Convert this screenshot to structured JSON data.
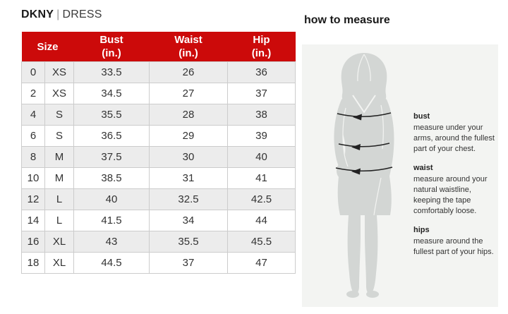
{
  "header": {
    "brand": "DKNY",
    "separator": "|",
    "category": "DRESS"
  },
  "size_chart": {
    "columns": {
      "size": {
        "label": "Size"
      },
      "bust": {
        "name": "Bust",
        "unit": "(in.)"
      },
      "waist": {
        "name": "Waist",
        "unit": "(in.)"
      },
      "hip": {
        "name": "Hip",
        "unit": "(in.)"
      }
    },
    "rows": [
      {
        "size_num": "0",
        "size_letter": "XS",
        "bust": "33.5",
        "waist": "26",
        "hip": "36"
      },
      {
        "size_num": "2",
        "size_letter": "XS",
        "bust": "34.5",
        "waist": "27",
        "hip": "37"
      },
      {
        "size_num": "4",
        "size_letter": "S",
        "bust": "35.5",
        "waist": "28",
        "hip": "38"
      },
      {
        "size_num": "6",
        "size_letter": "S",
        "bust": "36.5",
        "waist": "29",
        "hip": "39"
      },
      {
        "size_num": "8",
        "size_letter": "M",
        "bust": "37.5",
        "waist": "30",
        "hip": "40"
      },
      {
        "size_num": "10",
        "size_letter": "M",
        "bust": "38.5",
        "waist": "31",
        "hip": "41"
      },
      {
        "size_num": "12",
        "size_letter": "L",
        "bust": "40",
        "waist": "32.5",
        "hip": "42.5"
      },
      {
        "size_num": "14",
        "size_letter": "L",
        "bust": "41.5",
        "waist": "34",
        "hip": "44"
      },
      {
        "size_num": "16",
        "size_letter": "XL",
        "bust": "43",
        "waist": "35.5",
        "hip": "45.5"
      },
      {
        "size_num": "18",
        "size_letter": "XL",
        "bust": "44.5",
        "waist": "37",
        "hip": "47"
      }
    ]
  },
  "how_to_measure": {
    "title": "how to measure",
    "figure_icon": "woman-silhouette-with-measurement-arrows",
    "sections": [
      {
        "heading": "bust",
        "text": "measure under your arms, around the fullest part of your chest."
      },
      {
        "heading": "waist",
        "text": "measure around your natural waistline, keeping the tape comfortably loose."
      },
      {
        "heading": "hips",
        "text": "measure around the fullest part of your hips."
      }
    ]
  },
  "colors": {
    "header_red": "#cc0a0a",
    "header_text": "#ffffff",
    "row_alt_gray": "#ececec",
    "table_border": "#cccccc",
    "panel_bg": "#f3f4f2",
    "silhouette_gray": "#d3d6d4",
    "arrow_black": "#222222",
    "body_text": "#333333"
  }
}
